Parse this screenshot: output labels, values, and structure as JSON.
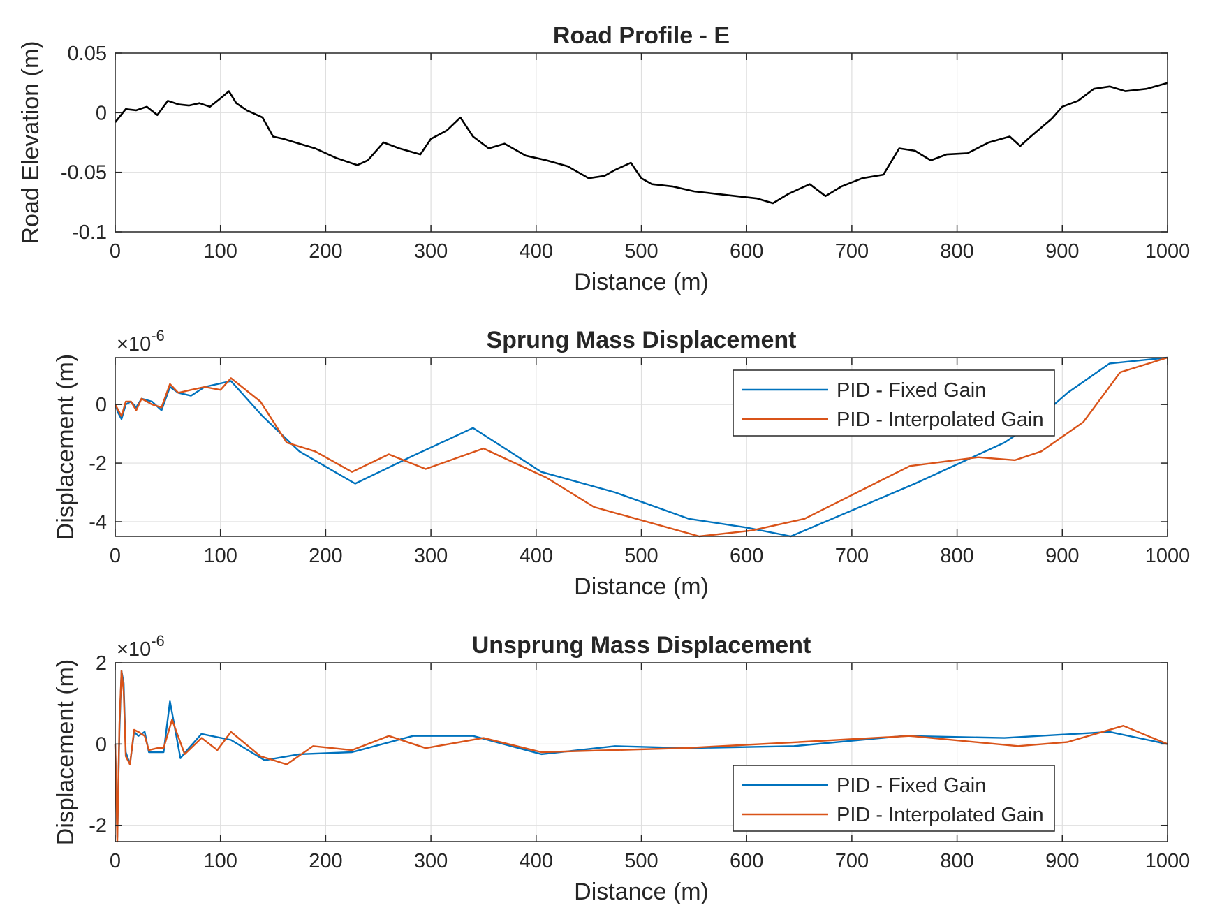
{
  "chart_data": [
    {
      "type": "line",
      "title": "Road Profile - E",
      "xlabel": "Distance (m)",
      "ylabel": "Road Elevation (m)",
      "xlim": [
        0,
        1000
      ],
      "ylim": [
        -0.1,
        0.05
      ],
      "xticks": [
        "0",
        "100",
        "200",
        "300",
        "400",
        "500",
        "600",
        "700",
        "800",
        "900",
        "1000"
      ],
      "yticks": [
        "0.05",
        "0",
        "-0.05",
        "-0.1"
      ],
      "grid": true,
      "legend": null,
      "series": [
        {
          "color": "#000000",
          "x": [
            0,
            10,
            20,
            30,
            40,
            50,
            60,
            70,
            80,
            90,
            100,
            108,
            115,
            125,
            140,
            150,
            160,
            175,
            190,
            210,
            230,
            240,
            255,
            270,
            290,
            300,
            315,
            328,
            340,
            355,
            370,
            390,
            410,
            430,
            450,
            465,
            475,
            490,
            500,
            510,
            530,
            550,
            570,
            590,
            610,
            625,
            640,
            660,
            675,
            690,
            710,
            730,
            745,
            760,
            775,
            790,
            810,
            830,
            850,
            860,
            870,
            890,
            900,
            915,
            930,
            945,
            960,
            980,
            1000
          ],
          "y": [
            -0.008,
            0.003,
            0.002,
            0.005,
            -0.002,
            0.01,
            0.007,
            0.006,
            0.008,
            0.005,
            0.012,
            0.018,
            0.008,
            0.002,
            -0.004,
            -0.02,
            -0.022,
            -0.026,
            -0.03,
            -0.038,
            -0.044,
            -0.04,
            -0.025,
            -0.03,
            -0.035,
            -0.022,
            -0.015,
            -0.004,
            -0.02,
            -0.03,
            -0.026,
            -0.036,
            -0.04,
            -0.045,
            -0.055,
            -0.053,
            -0.048,
            -0.042,
            -0.055,
            -0.06,
            -0.062,
            -0.066,
            -0.068,
            -0.07,
            -0.072,
            -0.076,
            -0.068,
            -0.06,
            -0.07,
            -0.062,
            -0.055,
            -0.052,
            -0.03,
            -0.032,
            -0.04,
            -0.035,
            -0.034,
            -0.025,
            -0.02,
            -0.028,
            -0.02,
            -0.005,
            0.005,
            0.01,
            0.02,
            0.022,
            0.018,
            0.02,
            0.025
          ]
        }
      ]
    },
    {
      "type": "line",
      "title": "Sprung Mass Displacement",
      "xlabel": "Distance (m)",
      "ylabel": "Displacement (m)",
      "exponent": "×10",
      "exponent_power": "-6",
      "xlim": [
        0,
        1000
      ],
      "ylim": [
        -4.5,
        1.6
      ],
      "xticks": [
        "0",
        "100",
        "200",
        "300",
        "400",
        "500",
        "600",
        "700",
        "800",
        "900",
        "1000"
      ],
      "yticks": [
        "0",
        "-2",
        "-4"
      ],
      "grid": true,
      "legend": "top-right",
      "series": [
        {
          "name": "PID - Fixed Gain",
          "color": "#0072BD",
          "x": [
            0,
            3,
            6,
            10,
            15,
            20,
            25,
            35,
            44,
            52,
            60,
            72,
            85,
            110,
            140,
            175,
            228,
            280,
            340,
            405,
            475,
            545,
            600,
            642,
            760,
            845,
            870,
            905,
            945,
            1000
          ],
          "y": [
            0,
            -0.3,
            -0.5,
            0.0,
            0.1,
            -0.1,
            0.2,
            0.1,
            -0.2,
            0.6,
            0.4,
            0.3,
            0.6,
            0.8,
            -0.4,
            -1.6,
            -2.7,
            -1.8,
            -0.8,
            -2.3,
            -3.0,
            -3.9,
            -4.2,
            -4.5,
            -2.7,
            -1.3,
            -0.7,
            0.4,
            1.4,
            1.6
          ]
        },
        {
          "name": "PID - Interpolated Gain",
          "color": "#D95319",
          "x": [
            0,
            3,
            6,
            10,
            15,
            20,
            25,
            35,
            44,
            52,
            60,
            72,
            85,
            100,
            110,
            138,
            163,
            190,
            225,
            260,
            295,
            350,
            410,
            455,
            555,
            605,
            655,
            755,
            820,
            855,
            880,
            920,
            955,
            1000
          ],
          "y": [
            0,
            -0.2,
            -0.4,
            0.1,
            0.1,
            -0.2,
            0.2,
            0.0,
            -0.1,
            0.7,
            0.4,
            0.5,
            0.6,
            0.5,
            0.9,
            0.1,
            -1.3,
            -1.6,
            -2.3,
            -1.7,
            -2.2,
            -1.5,
            -2.5,
            -3.5,
            -4.5,
            -4.3,
            -3.9,
            -2.1,
            -1.8,
            -1.9,
            -1.6,
            -0.6,
            1.1,
            1.6
          ]
        }
      ]
    },
    {
      "type": "line",
      "title": "Unsprung Mass Displacement",
      "xlabel": "Distance (m)",
      "ylabel": "Displacement (m)",
      "exponent": "×10",
      "exponent_power": "-6",
      "xlim": [
        0,
        1000
      ],
      "ylim": [
        -2.4,
        2.0
      ],
      "xticks": [
        "0",
        "100",
        "200",
        "300",
        "400",
        "500",
        "600",
        "700",
        "800",
        "900",
        "1000"
      ],
      "yticks": [
        "2",
        "0",
        "-2"
      ],
      "grid": true,
      "legend": "bottom-right",
      "series": [
        {
          "name": "PID - Fixed Gain",
          "color": "#0072BD",
          "x": [
            0,
            2,
            4,
            6,
            8,
            10,
            14,
            18,
            22,
            28,
            32,
            40,
            46,
            52,
            62,
            70,
            82,
            110,
            142,
            175,
            225,
            283,
            340,
            405,
            475,
            545,
            645,
            750,
            845,
            945,
            1000
          ],
          "y": [
            0,
            -2.3,
            0.3,
            1.8,
            1.5,
            -0.2,
            -0.5,
            0.3,
            0.2,
            0.3,
            -0.2,
            -0.2,
            -0.2,
            1.05,
            -0.35,
            -0.1,
            0.25,
            0.1,
            -0.4,
            -0.25,
            -0.2,
            0.2,
            0.2,
            -0.25,
            -0.05,
            -0.1,
            -0.05,
            0.2,
            0.15,
            0.3,
            0.0
          ]
        },
        {
          "name": "PID - Interpolated Gain",
          "color": "#D95319",
          "x": [
            0,
            2,
            4,
            6,
            8,
            10,
            14,
            18,
            22,
            28,
            32,
            40,
            46,
            54,
            66,
            82,
            97,
            110,
            138,
            163,
            188,
            225,
            260,
            295,
            350,
            405,
            540,
            650,
            755,
            858,
            905,
            958,
            1000
          ],
          "y": [
            0,
            -2.4,
            0.5,
            1.8,
            1.3,
            -0.3,
            -0.5,
            0.35,
            0.3,
            0.2,
            -0.15,
            -0.1,
            -0.1,
            0.6,
            -0.25,
            0.15,
            -0.15,
            0.3,
            -0.3,
            -0.5,
            -0.05,
            -0.15,
            0.2,
            -0.1,
            0.15,
            -0.2,
            -0.1,
            0.05,
            0.2,
            -0.05,
            0.05,
            0.45,
            0.0
          ]
        }
      ]
    }
  ]
}
